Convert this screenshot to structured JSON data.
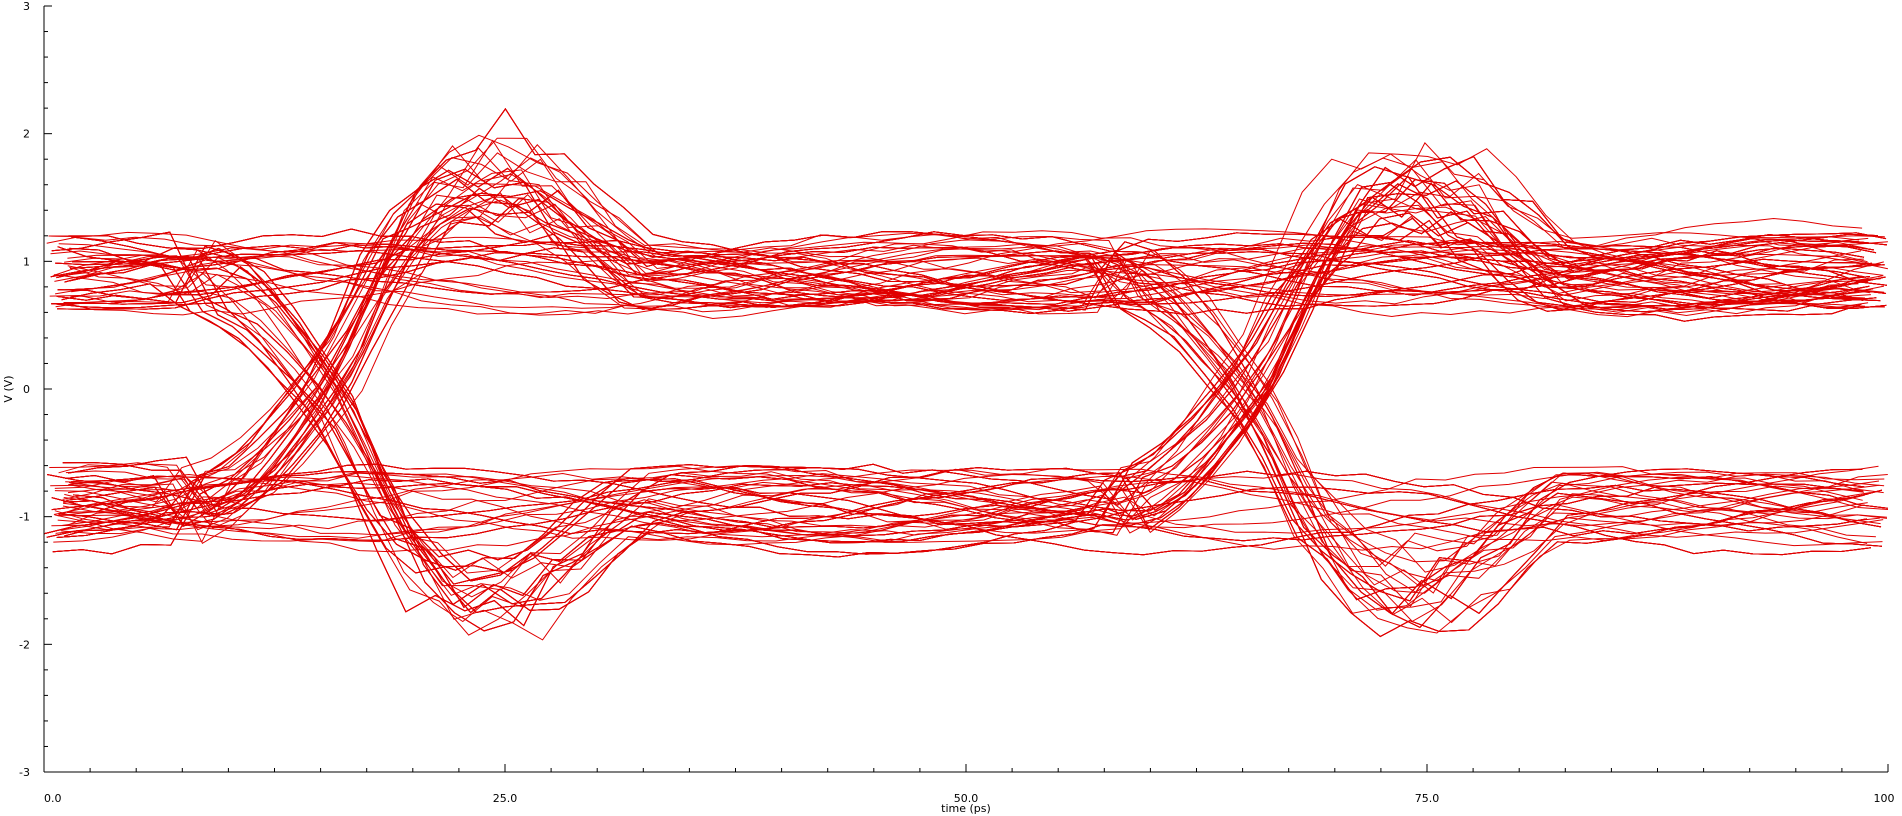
{
  "chart_data": {
    "type": "line",
    "title": "",
    "xlabel": "time (ps)",
    "ylabel": "V (V)",
    "xlim": [
      0,
      100
    ],
    "ylim": [
      -3,
      3
    ],
    "x_ticks": [
      {
        "value": 0,
        "label": "0.0"
      },
      {
        "value": 25,
        "label": "25.0"
      },
      {
        "value": 50,
        "label": "50.0"
      },
      {
        "value": 75,
        "label": "75.0"
      },
      {
        "value": 100,
        "label": "100"
      }
    ],
    "x_minor_step": 2.5,
    "y_ticks": [
      {
        "value": 3,
        "label": "3"
      },
      {
        "value": 2,
        "label": "2"
      },
      {
        "value": 1,
        "label": "1"
      },
      {
        "value": 0,
        "label": "0"
      },
      {
        "value": -1,
        "label": "-1"
      },
      {
        "value": -2,
        "label": "-2"
      },
      {
        "value": -3,
        "label": "-3"
      }
    ],
    "y_minor_step": 0.2,
    "grid": false,
    "legend": "none",
    "eye_diagram": {
      "unit_interval_ps": 50,
      "first_crossing_ps": 8,
      "high_level_v": 0.9,
      "low_level_v": -0.9,
      "peak_overshoot_v": 2.4,
      "trace_count": 240
    },
    "series_color": "#e00000"
  }
}
